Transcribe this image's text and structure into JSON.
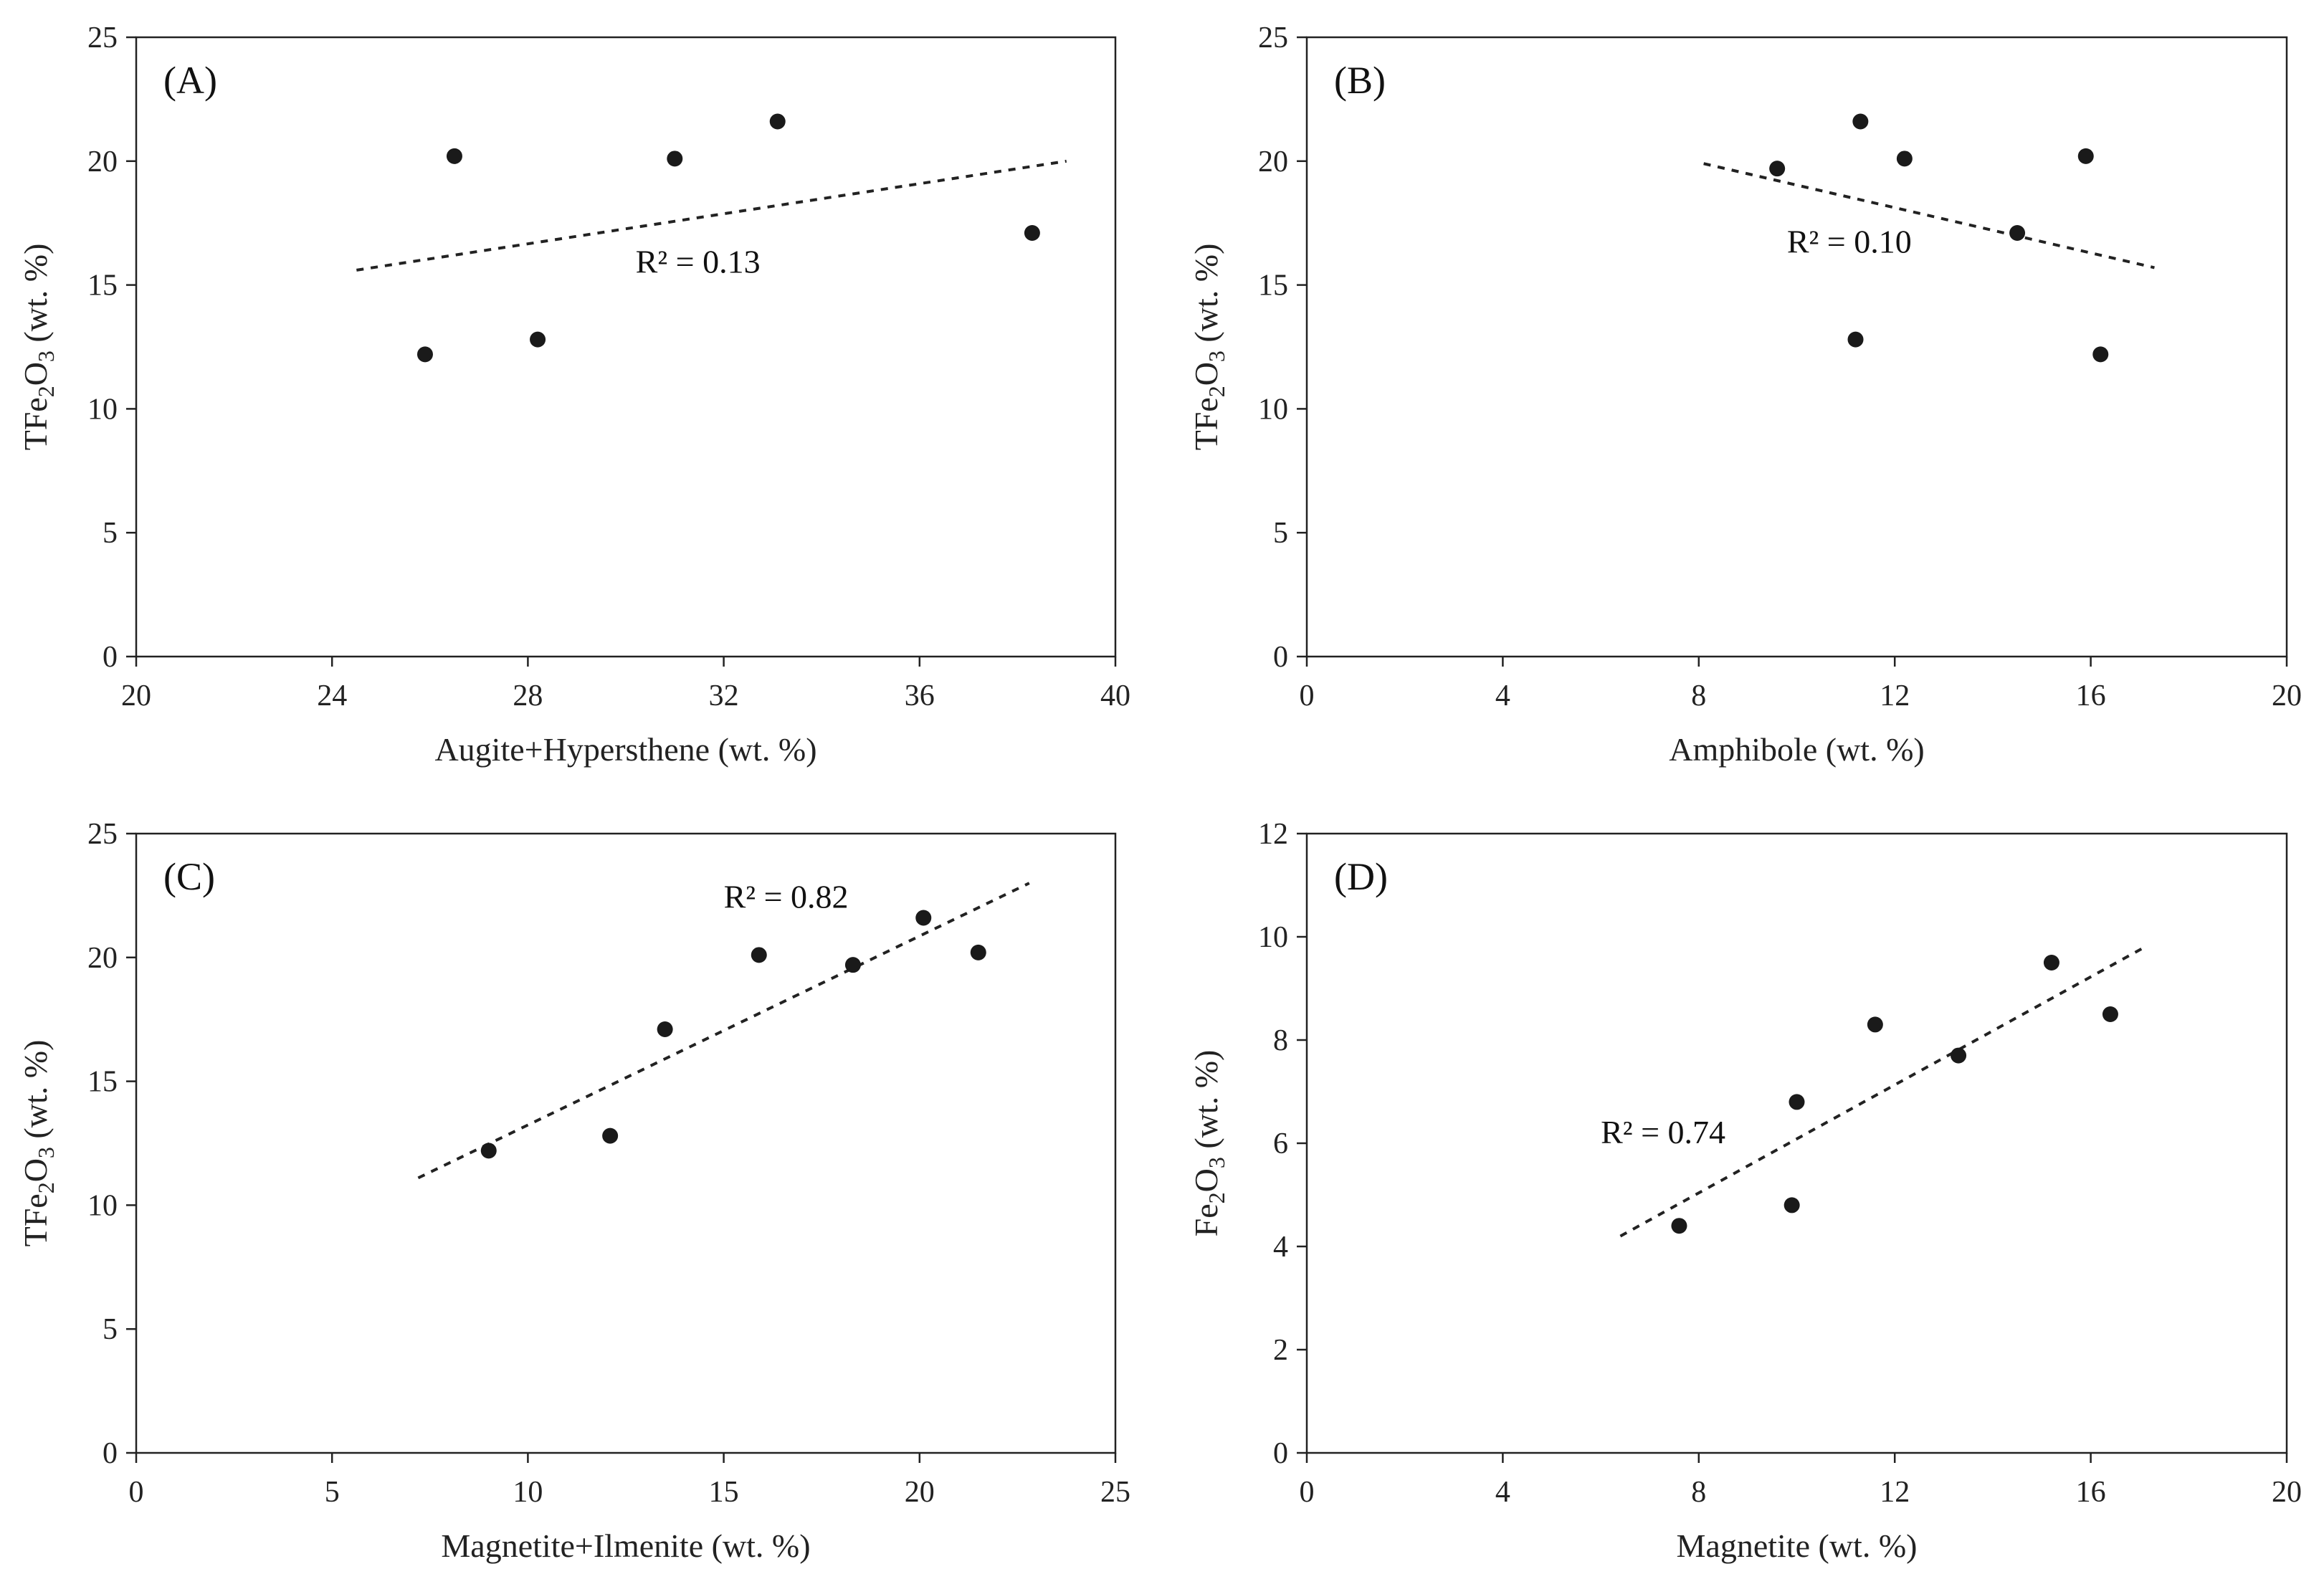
{
  "chart_data": [
    {
      "id": "A",
      "type": "scatter",
      "panel_label": "(A)",
      "xlabel": "Augite+Hypersthene (wt. %)",
      "ylabel": "TFe2O3 (wt. %)",
      "ylabel_parts": {
        "pre": "TFe",
        "sub1": "2",
        "mid": "O",
        "sub2": "3",
        "post": " (wt. %)"
      },
      "xlim": [
        20,
        40
      ],
      "ylim": [
        0,
        25
      ],
      "xticks": [
        20,
        24,
        28,
        32,
        36,
        40
      ],
      "yticks": [
        0,
        5,
        10,
        15,
        20,
        25
      ],
      "points": [
        [
          25.9,
          12.2
        ],
        [
          26.5,
          20.2
        ],
        [
          28.2,
          12.8
        ],
        [
          31.0,
          20.1
        ],
        [
          33.1,
          21.6
        ],
        [
          38.3,
          17.1
        ]
      ],
      "trendline": {
        "x": [
          24.5,
          39.0
        ],
        "y": [
          15.6,
          20.0
        ]
      },
      "r2_label": "R² = 0.13",
      "r2_anchor": [
        30.2,
        15.5
      ]
    },
    {
      "id": "B",
      "type": "scatter",
      "panel_label": "(B)",
      "xlabel": "Amphibole (wt. %)",
      "ylabel": "TFe2O3 (wt. %)",
      "ylabel_parts": {
        "pre": "TFe",
        "sub1": "2",
        "mid": "O",
        "sub2": "3",
        "post": " (wt. %)"
      },
      "xlim": [
        0,
        20
      ],
      "ylim": [
        0,
        25
      ],
      "xticks": [
        0,
        4,
        8,
        12,
        16,
        20
      ],
      "yticks": [
        0,
        5,
        10,
        15,
        20,
        25
      ],
      "points": [
        [
          9.6,
          19.7
        ],
        [
          11.2,
          12.8
        ],
        [
          11.3,
          21.6
        ],
        [
          12.2,
          20.1
        ],
        [
          14.5,
          17.1
        ],
        [
          15.9,
          20.2
        ],
        [
          16.2,
          12.2
        ]
      ],
      "trendline": {
        "x": [
          8.1,
          17.3
        ],
        "y": [
          19.9,
          15.7
        ]
      },
      "r2_label": "R² = 0.10",
      "r2_anchor": [
        9.8,
        16.3
      ]
    },
    {
      "id": "C",
      "type": "scatter",
      "panel_label": "(C)",
      "xlabel": "Magnetite+Ilmenite (wt. %)",
      "ylabel": "TFe2O3 (wt. %)",
      "ylabel_parts": {
        "pre": "TFe",
        "sub1": "2",
        "mid": "O",
        "sub2": "3",
        "post": " (wt. %)"
      },
      "xlim": [
        0,
        25
      ],
      "ylim": [
        0,
        25
      ],
      "xticks": [
        0,
        5,
        10,
        15,
        20,
        25
      ],
      "yticks": [
        0,
        5,
        10,
        15,
        20,
        25
      ],
      "points": [
        [
          9.0,
          12.2
        ],
        [
          12.1,
          12.8
        ],
        [
          13.5,
          17.1
        ],
        [
          15.9,
          20.1
        ],
        [
          18.3,
          19.7
        ],
        [
          20.1,
          21.6
        ],
        [
          21.5,
          20.2
        ]
      ],
      "trendline": {
        "x": [
          7.2,
          22.8
        ],
        "y": [
          11.1,
          23.0
        ]
      },
      "r2_label": "R² = 0.82",
      "r2_anchor": [
        15.0,
        22.0
      ]
    },
    {
      "id": "D",
      "type": "scatter",
      "panel_label": "(D)",
      "xlabel": "Magnetite (wt. %)",
      "ylabel": "Fe2O3 (wt. %)",
      "ylabel_parts": {
        "pre": "Fe",
        "sub1": "2",
        "mid": "O",
        "sub2": "3",
        "post": " (wt. %)"
      },
      "xlim": [
        0,
        20
      ],
      "ylim": [
        0,
        12
      ],
      "xticks": [
        0,
        4,
        8,
        12,
        16,
        20
      ],
      "yticks": [
        0,
        2,
        4,
        6,
        8,
        10,
        12
      ],
      "points": [
        [
          7.6,
          4.4
        ],
        [
          9.9,
          4.8
        ],
        [
          10.0,
          6.8
        ],
        [
          11.6,
          8.3
        ],
        [
          13.3,
          7.7
        ],
        [
          15.2,
          9.5
        ],
        [
          16.4,
          8.5
        ]
      ],
      "trendline": {
        "x": [
          6.4,
          17.1
        ],
        "y": [
          4.2,
          9.8
        ]
      },
      "r2_label": "R² = 0.74",
      "r2_anchor": [
        6.0,
        6.0
      ]
    }
  ]
}
